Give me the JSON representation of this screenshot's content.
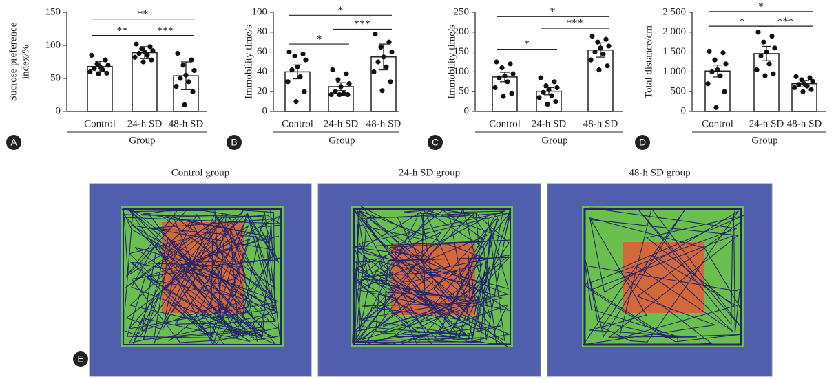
{
  "chart_data": [
    {
      "type": "bar",
      "panel": "A",
      "ylabel": [
        "Sucrose preference",
        "index/%"
      ],
      "xlabel": "Group",
      "categories": [
        "Control",
        "24-h SD",
        "48-h SD"
      ],
      "values": [
        68,
        89,
        54
      ],
      "errors": [
        8,
        9,
        21
      ],
      "points": [
        [
          85,
          78,
          72,
          70,
          68,
          65,
          63,
          60,
          58,
          57
        ],
        [
          102,
          98,
          95,
          92,
          90,
          88,
          85,
          82,
          78,
          75
        ],
        [
          88,
          78,
          70,
          62,
          55,
          50,
          45,
          38,
          30,
          10
        ]
      ],
      "ylim": [
        0,
        150
      ],
      "yticks": [
        0,
        50,
        100,
        150
      ],
      "annotations": [
        {
          "between": [
            "Control",
            "24-h SD"
          ],
          "y": 115,
          "label": "**"
        },
        {
          "between": [
            "Control",
            "48-h SD"
          ],
          "y": 140,
          "label": "**"
        },
        {
          "between": [
            "24-h SD",
            "48-h SD"
          ],
          "y": 115,
          "label": "***"
        }
      ]
    },
    {
      "type": "bar",
      "panel": "B",
      "ylabel": [
        "Immobility time/s"
      ],
      "xlabel": "Group",
      "categories": [
        "Control",
        "24-h SD",
        "48-h SD"
      ],
      "values": [
        40,
        25,
        55
      ],
      "errors": [
        7,
        4,
        13
      ],
      "points": [
        [
          60,
          58,
          56,
          52,
          45,
          42,
          35,
          30,
          20,
          10
        ],
        [
          42,
          38,
          32,
          28,
          25,
          20,
          18,
          17,
          17,
          17
        ],
        [
          78,
          70,
          65,
          60,
          55,
          50,
          45,
          40,
          30,
          21
        ]
      ],
      "ylim": [
        0,
        100
      ],
      "yticks": [
        0,
        20,
        40,
        60,
        80,
        100
      ],
      "annotations": [
        {
          "between": [
            "Control",
            "24-h SD"
          ],
          "y": 68,
          "label": "*"
        },
        {
          "between": [
            "Control",
            "48-h SD"
          ],
          "y": 97,
          "label": "*"
        },
        {
          "between": [
            "24-h SD",
            "48-h SD"
          ],
          "y": 83,
          "label": "***"
        }
      ]
    },
    {
      "type": "bar",
      "panel": "C",
      "ylabel": [
        "Immobility time/s"
      ],
      "xlabel": "Group",
      "categories": [
        "Control",
        "24-h SD",
        "48-h SD"
      ],
      "values": [
        87,
        51,
        155
      ],
      "errors": [
        12,
        9,
        18
      ],
      "points": [
        [
          125,
          120,
          110,
          95,
          90,
          85,
          75,
          60,
          45,
          38
        ],
        [
          85,
          75,
          65,
          60,
          55,
          48,
          40,
          35,
          25,
          18
        ],
        [
          190,
          182,
          175,
          165,
          160,
          150,
          145,
          130,
          115,
          105
        ]
      ],
      "ylim": [
        0,
        250
      ],
      "yticks": [
        0,
        50,
        100,
        150,
        200,
        250
      ],
      "annotations": [
        {
          "between": [
            "Control",
            "24-h SD"
          ],
          "y": 157,
          "label": "*"
        },
        {
          "between": [
            "Control",
            "48-h SD"
          ],
          "y": 240,
          "label": "*"
        },
        {
          "between": [
            "24-h SD",
            "48-h SD"
          ],
          "y": 210,
          "label": "***"
        }
      ]
    },
    {
      "type": "bar",
      "panel": "D",
      "ylabel": [
        "Total distance/cm"
      ],
      "xlabel": "Group",
      "categories": [
        "Control",
        "24-h SD",
        "48-h SD"
      ],
      "values": [
        1020,
        1460,
        700
      ],
      "errors": [
        150,
        180,
        80
      ],
      "points": [
        [
          1520,
          1480,
          1300,
          1200,
          1050,
          1000,
          900,
          700,
          500,
          100
        ],
        [
          2000,
          1900,
          1750,
          1600,
          1500,
          1400,
          1200,
          1050,
          950,
          900
        ],
        [
          880,
          850,
          800,
          760,
          700,
          680,
          640,
          600,
          550,
          500
        ]
      ],
      "ylim": [
        0,
        2500
      ],
      "yticks": [
        0,
        500,
        {
          "value": 1000,
          "label": "1 000"
        },
        {
          "value": 1500,
          "label": "1 500"
        },
        {
          "value": 2000,
          "label": "2 000"
        },
        {
          "value": 2500,
          "label": "2 500"
        }
      ],
      "annotations": [
        {
          "between": [
            "Control",
            "24-h SD"
          ],
          "y": 2150,
          "label": "*"
        },
        {
          "between": [
            "Control",
            "48-h SD"
          ],
          "y": 2520,
          "label": "*"
        },
        {
          "between": [
            "24-h SD",
            "48-h SD"
          ],
          "y": 2150,
          "label": "***"
        }
      ]
    }
  ],
  "open_field": {
    "panel": "E",
    "titles": [
      "Control group",
      "24-h SD group",
      "48-h SD group"
    ]
  }
}
